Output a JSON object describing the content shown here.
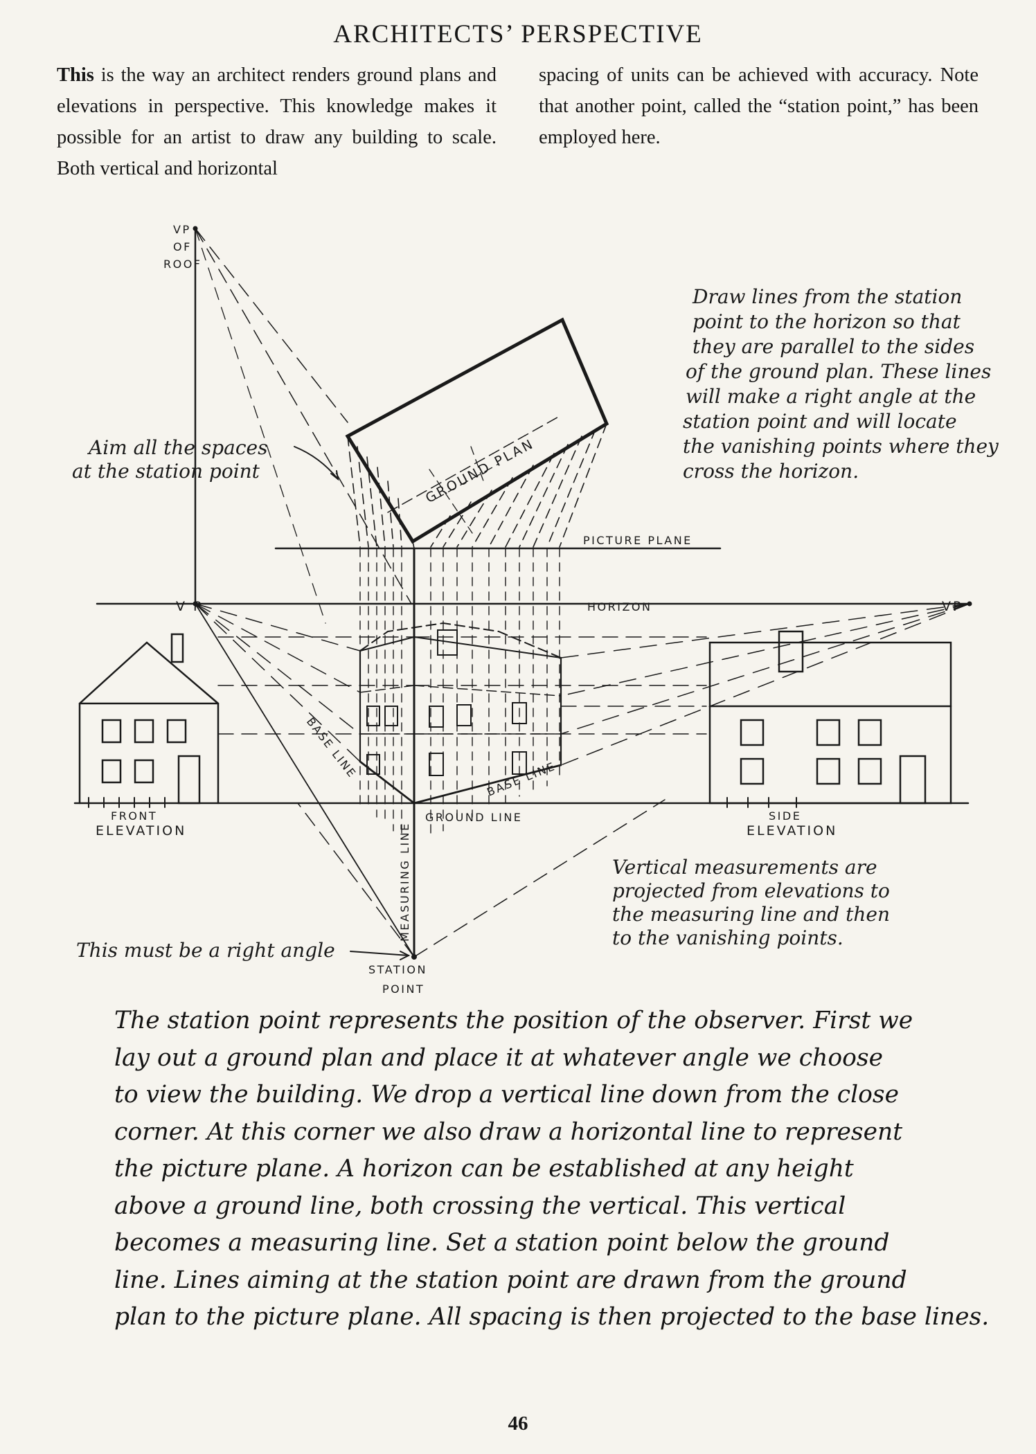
{
  "page": {
    "title": "ARCHITECTS’ PERSPECTIVE",
    "number": "46"
  },
  "intro": {
    "left_lead": "This",
    "left_text": " is the way an architect renders ground plans and elevations in perspective. This knowledge makes it possible for an artist to draw any building to scale. Both vertical and horizontal",
    "right_text": "spacing of units can be achieved with accuracy. Note that another point, called the “station point,” has been employed here."
  },
  "diagram": {
    "vp_roof": [
      "VP",
      "OF",
      "ROOF"
    ],
    "vp_left": "V P",
    "vp_right": "VP",
    "ground_plan": "GROUND PLAN",
    "picture_plane": "PICTURE PLANE",
    "horizon": "HORIZON",
    "ground_line": "GROUND LINE",
    "measuring_line": "MEASURING LINE",
    "base_line_left": "BASE LINE",
    "base_line_right": "BASE LINE",
    "front_elevation": [
      "FRONT",
      "ELEVATION"
    ],
    "side_elevation": [
      "SIDE",
      "ELEVATION"
    ],
    "station_point": [
      "STATION",
      "POINT"
    ],
    "note_aim": [
      "Aim all the spaces",
      "at the station point"
    ],
    "note_draw": [
      "Draw lines from the station",
      "point to the horizon so that",
      "they are parallel to the sides",
      "of the ground plan. These lines",
      "will make a right angle at the",
      "station point and will locate",
      "the vanishing points where they",
      "cross the horizon."
    ],
    "note_vertical": [
      "Vertical measurements are",
      "projected from elevations to",
      "the measuring line and then",
      "to the vanishing points."
    ],
    "note_right_angle": "This must be a right angle"
  },
  "body_text": [
    "The station point represents the position of the observer. First we",
    "lay out a ground plan and place it at whatever angle we choose",
    "to view the building. We drop a vertical line down from the close",
    "corner. At this corner we also draw a horizontal line to represent",
    "the picture plane. A horizon can be established at any height",
    "above a ground line, both crossing the vertical. This vertical",
    "becomes a measuring line. Set a station point below the ground",
    "line. Lines aiming at the station point are drawn from the ground",
    "plan to the picture plane. All spacing is then projected to the base lines."
  ]
}
